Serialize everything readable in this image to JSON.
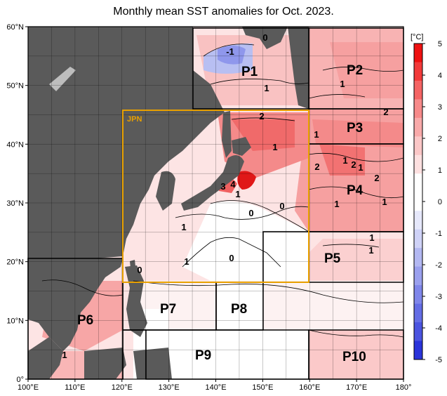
{
  "title": "Monthly mean SST anomalies for Oct. 2023.",
  "unit": "[°C]",
  "lon_ticks": [
    "100°E",
    "110°E",
    "120°E",
    "130°E",
    "140°E",
    "150°E",
    "160°E",
    "170°E",
    "180°"
  ],
  "lat_ticks": [
    "0°",
    "10°N",
    "20°N",
    "30°N",
    "40°N",
    "50°N",
    "60°N"
  ],
  "colorbar": {
    "ticks": [
      "5",
      "4",
      "3",
      "2",
      "1",
      "0",
      "-1",
      "-2",
      "-3",
      "-4",
      "-5"
    ],
    "max": 5,
    "min": -5,
    "colors_top_to_bottom": [
      "#ee1111",
      "#f23a3a",
      "#f56464",
      "#f78a8a",
      "#f9aaaa",
      "#fbc7c7",
      "#fde0e0",
      "#ffffff",
      "#ffffff",
      "#e6e8fb",
      "#cfd2f7",
      "#b3b8f2",
      "#9aa0ee",
      "#7f86ea",
      "#646de5",
      "#4b54e0",
      "#2a34da"
    ]
  },
  "jpn_label": "JPN",
  "regions": [
    "P1",
    "P2",
    "P3",
    "P4",
    "P5",
    "P6",
    "P7",
    "P8",
    "P9",
    "P10"
  ],
  "contour_labels": [
    "-1",
    "0",
    "1",
    "1",
    "2",
    "2",
    "1",
    "1",
    "2",
    "1",
    "2",
    "2",
    "1",
    "1",
    "1",
    "3",
    "4",
    "1",
    "0",
    "0",
    "1",
    "1",
    "0",
    "1",
    "1",
    "0",
    "1"
  ],
  "colors": {
    "land": "#5a5a5a",
    "jpn_box": "#e8a000",
    "box": "#000000",
    "grid": "#000000"
  }
}
